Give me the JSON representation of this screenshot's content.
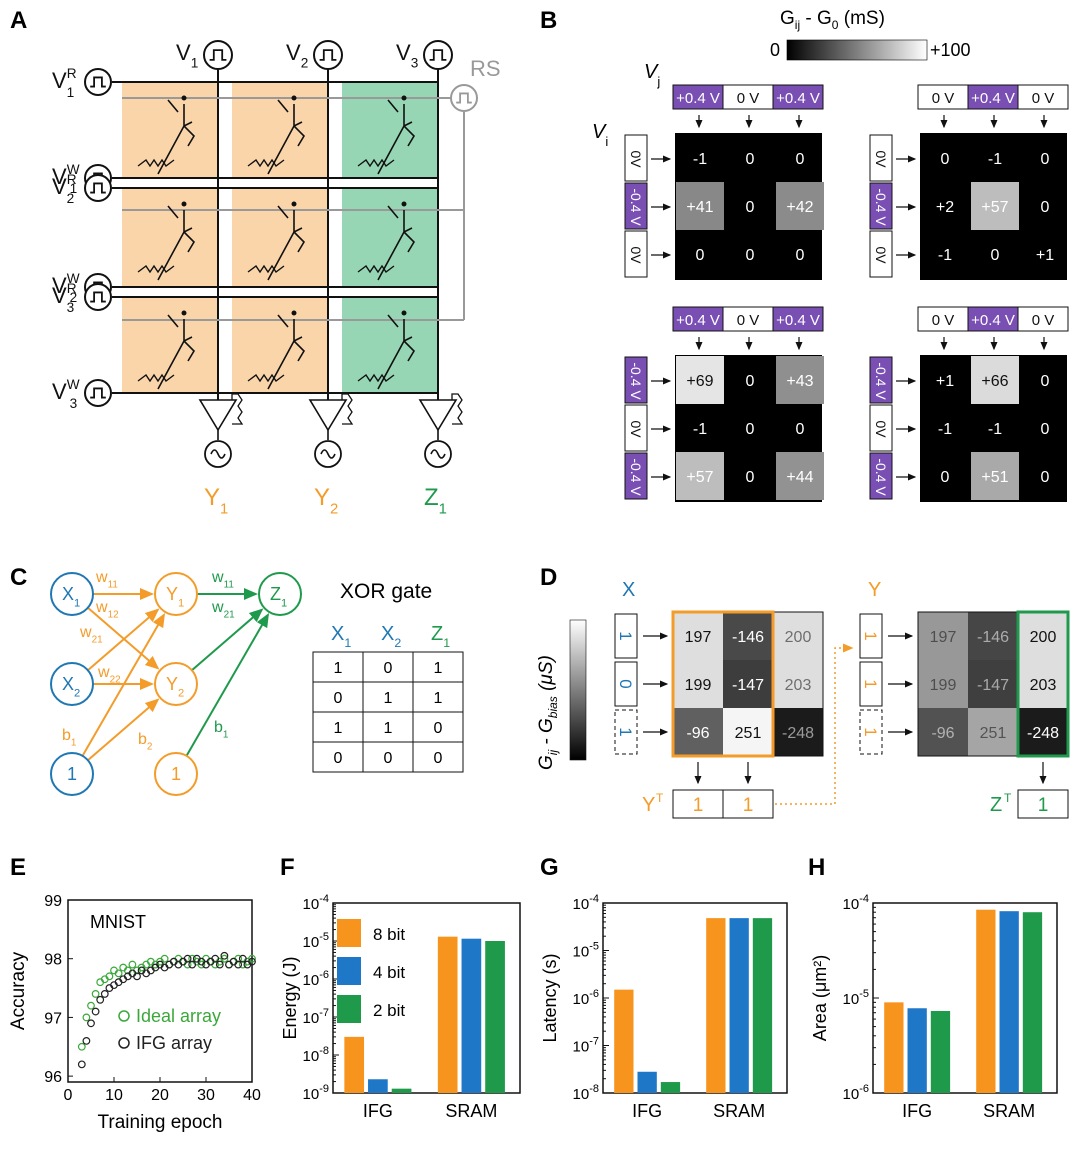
{
  "panels": {
    "A": "A",
    "B": "B",
    "C": "C",
    "D": "D",
    "E": "E",
    "F": "F",
    "G": "G",
    "H": "H"
  },
  "panelA": {
    "cols": [
      {
        "base": "V",
        "sub": "1"
      },
      {
        "base": "V",
        "sub": "2"
      },
      {
        "base": "V",
        "sub": "3"
      }
    ],
    "rows": [
      {
        "base": "V",
        "sub": "1",
        "sup": "R"
      },
      {
        "base": "V",
        "sub": "1",
        "sup": "W"
      },
      {
        "base": "V",
        "sub": "2",
        "sup": "R"
      },
      {
        "base": "V",
        "sub": "2",
        "sup": "W"
      },
      {
        "base": "V",
        "sub": "3",
        "sup": "R"
      },
      {
        "base": "V",
        "sub": "3",
        "sup": "W"
      }
    ],
    "rs": "RS",
    "outputs": [
      {
        "base": "Y",
        "sub": "1",
        "color": "#f39c2a"
      },
      {
        "base": "Y",
        "sub": "2",
        "color": "#f39c2a"
      },
      {
        "base": "Z",
        "sub": "1",
        "color": "#1f9a4c"
      }
    ],
    "colors": {
      "orange": "#fbd5aa",
      "green": "#96d6b5"
    }
  },
  "panelB": {
    "colorbar_title_parts": {
      "a": "G",
      "sub1": "ij",
      "b": " - G",
      "sub2": "0",
      "c": " (mS)"
    },
    "colorbar_min": "0",
    "colorbar_max": "+100",
    "vj": {
      "base": "V",
      "sub": "j"
    },
    "vi": {
      "base": "V",
      "sub": "i"
    },
    "blocks": [
      {
        "top": [
          "+0.4 V",
          "0 V",
          "+0.4 V"
        ],
        "side": [
          "0V",
          "-0.4 V",
          "0V"
        ],
        "cells": [
          [
            "-1",
            "0",
            "0"
          ],
          [
            "+41",
            "0",
            "+42"
          ],
          [
            "0",
            "0",
            "0"
          ]
        ]
      },
      {
        "top": [
          "0 V",
          "+0.4 V",
          "0 V"
        ],
        "side": [
          "0V",
          "-0.4 V",
          "0V"
        ],
        "cells": [
          [
            "0",
            "-1",
            "0"
          ],
          [
            "+2",
            "+57",
            "0"
          ],
          [
            "-1",
            "0",
            "+1"
          ]
        ]
      },
      {
        "top": [
          "+0.4 V",
          "0 V",
          "+0.4 V"
        ],
        "side": [
          "-0.4 V",
          "0V",
          "-0.4 V"
        ],
        "cells": [
          [
            "+69",
            "0",
            "+43"
          ],
          [
            "-1",
            "0",
            "0"
          ],
          [
            "+57",
            "0",
            "+44"
          ]
        ]
      },
      {
        "top": [
          "0 V",
          "+0.4 V",
          "0 V"
        ],
        "side": [
          "-0.4 V",
          "0V",
          "-0.4 V"
        ],
        "cells": [
          [
            "+1",
            "+66",
            "0"
          ],
          [
            "-1",
            "-1",
            "0"
          ],
          [
            "0",
            "+51",
            "0"
          ]
        ]
      }
    ],
    "purple": "#7a4fb3"
  },
  "panelC": {
    "nodes": {
      "x1": "X1",
      "x2": "X2",
      "y1": "Y1",
      "y2": "Y2",
      "z1": "Z1",
      "one": "1",
      "one2": "1"
    },
    "weights": {
      "w11a": "w11",
      "w12": "w12",
      "w21a": "w21",
      "w22": "w22",
      "b1a": "b1",
      "b2": "b2",
      "w11b": "w11",
      "w21b": "w21",
      "b1b": "b1"
    },
    "table_title": "XOR gate",
    "table_headers": [
      {
        "base": "X",
        "sub": "1",
        "color": "#1f77b4"
      },
      {
        "base": "X",
        "sub": "2",
        "color": "#1f77b4"
      },
      {
        "base": "Z",
        "sub": "1",
        "color": "#1f9a4c"
      }
    ],
    "table_rows": [
      [
        "1",
        "0",
        "1"
      ],
      [
        "0",
        "1",
        "1"
      ],
      [
        "1",
        "1",
        "0"
      ],
      [
        "0",
        "0",
        "0"
      ]
    ]
  },
  "panelD": {
    "ylabel_parts": {
      "a": "G",
      "sub1": "ij",
      "b": " - G",
      "sub2": "bias",
      "c": " (μS)"
    },
    "x_label": "X",
    "y_label": "Y",
    "x_inputs": [
      "1",
      "0",
      "1"
    ],
    "y_inputs": [
      "1",
      "1",
      "1"
    ],
    "matrix": [
      [
        "197",
        "-146",
        "200"
      ],
      [
        "199",
        "-147",
        "203"
      ],
      [
        "-96",
        "251",
        "-248"
      ]
    ],
    "yt_label": "Y",
    "yt_sup": "T",
    "yt_values": [
      "1",
      "1"
    ],
    "zt_label": "Z",
    "zt_sup": "T",
    "zt_value": "1"
  },
  "chart_data": [
    {
      "type": "scatter",
      "panel": "E",
      "title": "MNIST",
      "xlabel": "Training epoch",
      "ylabel": "Accuracy",
      "xlim": [
        0,
        40
      ],
      "ylim": [
        95.9,
        99
      ],
      "xticks": [
        "0",
        "10",
        "20",
        "30",
        "40"
      ],
      "yticks": [
        "96",
        "97",
        "98",
        "99"
      ],
      "legend": "bottom-right",
      "series": [
        {
          "name": "Ideal array",
          "color": "#3aa83a",
          "x": [
            3,
            4,
            5,
            6,
            7,
            8,
            9,
            10,
            11,
            12,
            13,
            14,
            15,
            16,
            17,
            18,
            19,
            20,
            21,
            22,
            23,
            24,
            25,
            26,
            27,
            28,
            29,
            30,
            31,
            32,
            33,
            34,
            35,
            36,
            37,
            38,
            39,
            40
          ],
          "y": [
            96.5,
            97.0,
            97.2,
            97.4,
            97.6,
            97.65,
            97.7,
            97.8,
            97.75,
            97.85,
            97.8,
            97.9,
            97.8,
            97.85,
            97.9,
            97.95,
            97.9,
            97.95,
            98.0,
            97.9,
            97.95,
            98.0,
            97.95,
            97.9,
            98.0,
            97.95,
            97.9,
            98.0,
            97.95,
            97.9,
            97.95,
            98.0,
            97.9,
            97.95,
            98.0,
            97.9,
            97.95,
            98.0
          ]
        },
        {
          "name": "IFG array",
          "color": "#222222",
          "x": [
            3,
            4,
            5,
            6,
            7,
            8,
            9,
            10,
            11,
            12,
            13,
            14,
            15,
            16,
            17,
            18,
            19,
            20,
            21,
            22,
            23,
            24,
            25,
            26,
            27,
            28,
            29,
            30,
            31,
            32,
            33,
            34,
            35,
            36,
            37,
            38,
            39,
            40
          ],
          "y": [
            96.2,
            96.6,
            96.9,
            97.1,
            97.3,
            97.4,
            97.5,
            97.55,
            97.6,
            97.65,
            97.7,
            97.75,
            97.7,
            97.8,
            97.75,
            97.8,
            97.85,
            97.9,
            97.85,
            97.9,
            97.95,
            97.9,
            97.95,
            98.0,
            97.9,
            98.0,
            97.95,
            97.9,
            97.95,
            98.0,
            97.9,
            98.05,
            97.9,
            97.95,
            97.9,
            98.0,
            97.9,
            97.95
          ]
        }
      ]
    },
    {
      "type": "bar",
      "panel": "F",
      "ylabel": "Energy (J)",
      "categories": [
        "IFG",
        "SRAM"
      ],
      "yscale": "log",
      "ylim_exp": [
        -9,
        -4
      ],
      "legend": "top-left",
      "series": [
        {
          "name": "8 bit",
          "color": "#f7941d",
          "values": [
            3e-08,
            1.3e-05
          ]
        },
        {
          "name": "4 bit",
          "color": "#1f77c8",
          "values": [
            2.3e-09,
            1.15e-05
          ]
        },
        {
          "name": "2 bit",
          "color": "#1e9a4a",
          "values": [
            1.3e-09,
            1e-05
          ]
        }
      ]
    },
    {
      "type": "bar",
      "panel": "G",
      "ylabel": "Latency (s)",
      "categories": [
        "IFG",
        "SRAM"
      ],
      "yscale": "log",
      "ylim_exp": [
        -8,
        -4
      ],
      "series": [
        {
          "name": "8 bit",
          "color": "#f7941d",
          "values": [
            1.5e-06,
            4.8e-05
          ]
        },
        {
          "name": "4 bit",
          "color": "#1f77c8",
          "values": [
            2.8e-08,
            4.8e-05
          ]
        },
        {
          "name": "2 bit",
          "color": "#1e9a4a",
          "values": [
            1.7e-08,
            4.8e-05
          ]
        }
      ]
    },
    {
      "type": "bar",
      "panel": "H",
      "ylabel": "Area (μm²)",
      "categories": [
        "IFG",
        "SRAM"
      ],
      "yscale": "log",
      "ylim_exp": [
        -6,
        -4
      ],
      "series": [
        {
          "name": "8 bit",
          "color": "#f7941d",
          "values": [
            9e-06,
            8.5e-05
          ]
        },
        {
          "name": "4 bit",
          "color": "#1f77c8",
          "values": [
            7.8e-06,
            8.2e-05
          ]
        },
        {
          "name": "2 bit",
          "color": "#1e9a4a",
          "values": [
            7.3e-06,
            8e-05
          ]
        }
      ]
    }
  ]
}
